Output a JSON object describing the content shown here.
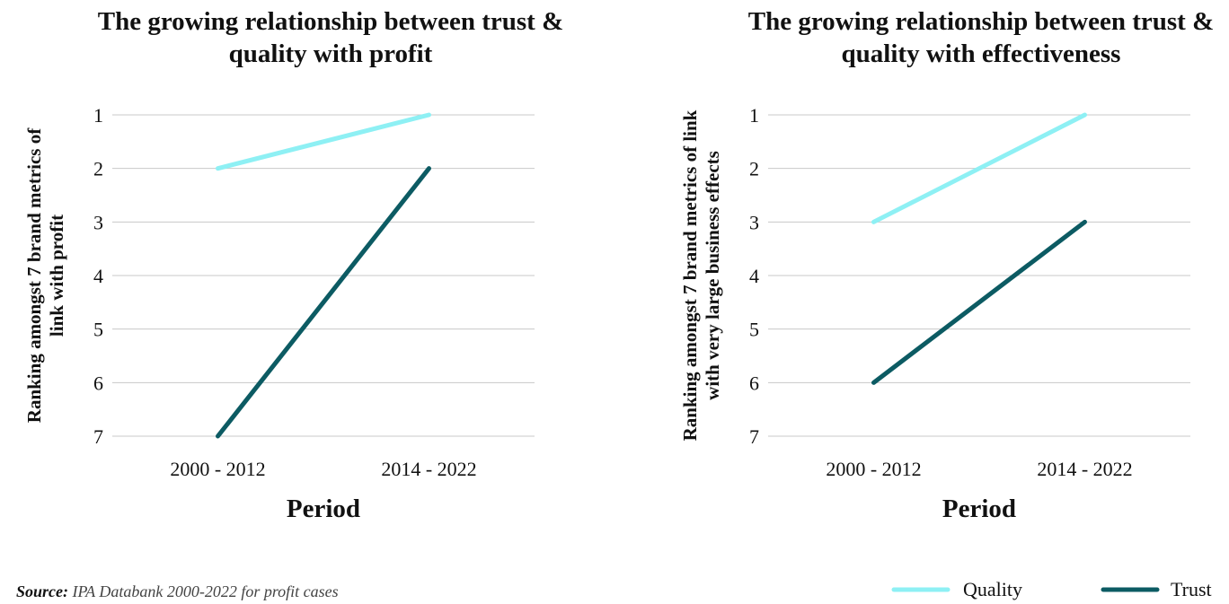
{
  "chart_data": [
    {
      "type": "line",
      "title": [
        "The growing relationship between trust &",
        "quality with profit"
      ],
      "xlabel": "Period",
      "ylabel": [
        "Ranking amongst 7 brand metrics of",
        "link with profit"
      ],
      "categories": [
        "2000 - 2012",
        "2014 - 2022"
      ],
      "y_ticks": [
        "1",
        "2",
        "3",
        "4",
        "5",
        "6",
        "7"
      ],
      "ylim": [
        1,
        7
      ],
      "y_reversed": true,
      "grid": true,
      "series": [
        {
          "name": "Quality",
          "color": "#8ef0f4",
          "values": [
            2,
            1
          ]
        },
        {
          "name": "Trust",
          "color": "#0c5b63",
          "values": [
            7,
            2
          ]
        }
      ]
    },
    {
      "type": "line",
      "title": [
        "The growing relationship between trust &",
        "quality with effectiveness"
      ],
      "xlabel": "Period",
      "ylabel": [
        "Ranking amongst 7 brand metrics of link",
        "with very large business effects"
      ],
      "categories": [
        "2000 - 2012",
        "2014 - 2022"
      ],
      "y_ticks": [
        "1",
        "2",
        "3",
        "4",
        "5",
        "6",
        "7"
      ],
      "ylim": [
        1,
        7
      ],
      "y_reversed": true,
      "grid": true,
      "series": [
        {
          "name": "Quality",
          "color": "#8ef0f4",
          "values": [
            3,
            1
          ]
        },
        {
          "name": "Trust",
          "color": "#0c5b63",
          "values": [
            6,
            3
          ]
        }
      ]
    }
  ],
  "legend": {
    "placement": "bottom-right",
    "items": [
      {
        "label": "Quality",
        "color": "#8ef0f4"
      },
      {
        "label": "Trust",
        "color": "#0c5b63"
      }
    ]
  },
  "source": {
    "label": "Source:",
    "text": " IPA Databank 2000-2022 for profit cases"
  }
}
